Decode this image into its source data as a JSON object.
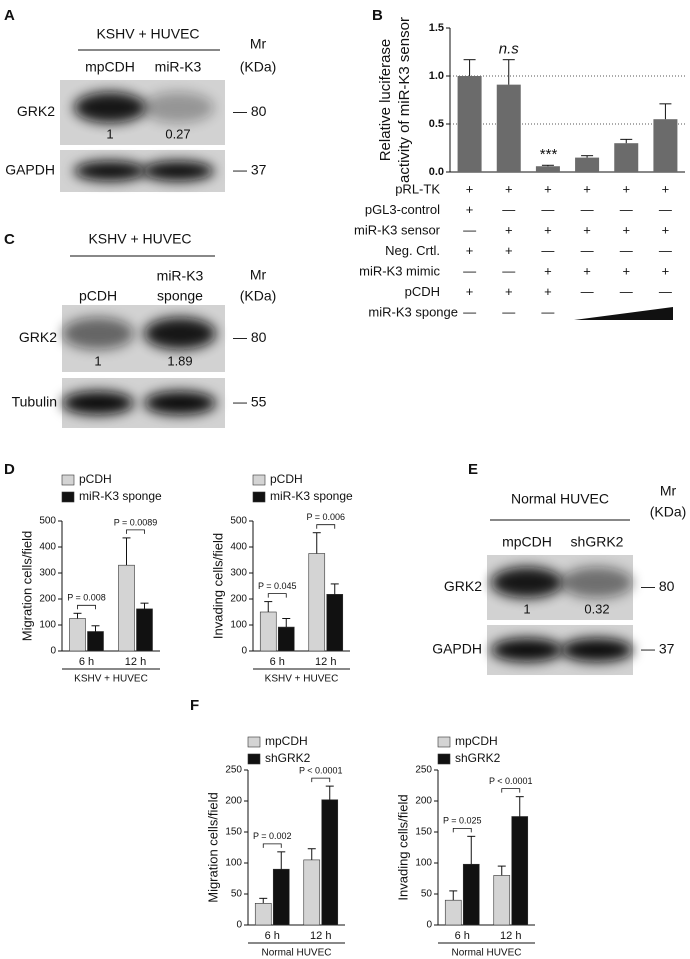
{
  "panel_letters": [
    "A",
    "B",
    "C",
    "D",
    "E",
    "F"
  ],
  "blots": [
    {
      "title": "KSHV + HUVEC",
      "lanes": [
        [
          "mpCDH"
        ],
        [
          "miR-K3"
        ]
      ],
      "mr": [
        "Mr",
        "(KDa)"
      ],
      "rows": [
        {
          "protein": "GRK2",
          "mr": "— 80",
          "quant": [
            "1",
            "0.27"
          ]
        },
        {
          "protein": "GAPDH",
          "mr": "— 37"
        }
      ]
    },
    {
      "title": "KSHV + HUVEC",
      "lanes": [
        [
          "pCDH"
        ],
        [
          "miR-K3",
          "sponge"
        ]
      ],
      "mr": [
        "Mr",
        "(KDa)"
      ],
      "rows": [
        {
          "protein": "GRK2",
          "mr": "— 80",
          "quant": [
            "1",
            "1.89"
          ]
        },
        {
          "protein": "Tubulin",
          "mr": "— 55"
        }
      ]
    },
    {
      "title": "Normal HUVEC",
      "lanes": [
        [
          "mpCDH"
        ],
        [
          "shGRK2"
        ]
      ],
      "mr": [
        "Mr",
        "(KDa)"
      ],
      "rows": [
        {
          "protein": "GRK2",
          "mr": "— 80",
          "quant": [
            "1",
            "0.32"
          ]
        },
        {
          "protein": "GAPDH",
          "mr": "— 37"
        }
      ]
    }
  ],
  "chart_data": [
    {
      "type": "bar",
      "ylabel": [
        "Relative luciferase",
        "activity of miR-K3 sensor"
      ],
      "values": [
        1,
        0.91,
        0.06,
        0.15,
        0.3,
        0.55
      ],
      "errors": [
        0.17,
        0.26,
        0.01,
        0.02,
        0.04,
        0.16
      ],
      "color": "#6b6b6b",
      "bar_labels": [
        null,
        "n.s",
        "***",
        null,
        null,
        null
      ],
      "ylim": [
        0,
        1.5
      ],
      "yticks": [
        {
          "value": 0,
          "label": "0.0"
        },
        {
          "value": 0.5,
          "label": "0.5"
        },
        {
          "value": 1,
          "label": "1.0"
        },
        {
          "value": 1.5,
          "label": "1.5"
        }
      ],
      "reference_lines": [
        0.5,
        1
      ],
      "conditions": [
        {
          "label": "pRL-TK",
          "cells": [
            "+",
            "+",
            "+",
            "+",
            "+",
            "+"
          ]
        },
        {
          "label": "pGL3-control",
          "cells": [
            "+",
            "—",
            "—",
            "—",
            "—",
            "—"
          ]
        },
        {
          "label": "miR-K3 sensor",
          "cells": [
            "—",
            "+",
            "+",
            "+",
            "+",
            "+"
          ]
        },
        {
          "label": "Neg. Crtl.",
          "cells": [
            "+",
            "+",
            "—",
            "—",
            "—",
            "—"
          ]
        },
        {
          "label": "miR-K3 mimic",
          "cells": [
            "—",
            "—",
            "+",
            "+",
            "+",
            "+"
          ]
        },
        {
          "label": "pCDH",
          "cells": [
            "+",
            "+",
            "+",
            "—",
            "—",
            "—"
          ]
        },
        {
          "label": "miR-K3 sponge",
          "cells": [
            "—",
            "—",
            "—",
            null,
            null,
            null
          ]
        }
      ]
    },
    {
      "type": "grouped_bar",
      "categories": [
        "6 h",
        "12 h"
      ],
      "xlabel": "KSHV + HUVEC",
      "ylabel": "Migration cells/field",
      "series": [
        {
          "name": "pCDH",
          "color": "#d4d4d4",
          "values": [
            125,
            330
          ],
          "errors": [
            20,
            105
          ]
        },
        {
          "name": "miR-K3 sponge",
          "color": "#111111",
          "values": [
            75,
            162
          ],
          "errors": [
            22,
            22
          ]
        }
      ],
      "annotations": [
        "P = 0.008",
        "P = 0.0089"
      ],
      "ylim": [
        0,
        500
      ],
      "yticks": [
        0,
        100,
        200,
        300,
        400,
        500
      ]
    },
    {
      "type": "grouped_bar",
      "categories": [
        "6 h",
        "12 h"
      ],
      "xlabel": "KSHV + HUVEC",
      "ylabel": "Invading cells/field",
      "series": [
        {
          "name": "pCDH",
          "color": "#d4d4d4",
          "values": [
            150,
            375
          ],
          "errors": [
            40,
            80
          ]
        },
        {
          "name": "miR-K3 sponge",
          "color": "#111111",
          "values": [
            92,
            218
          ],
          "errors": [
            33,
            40
          ]
        }
      ],
      "annotations": [
        "P = 0.045",
        "P = 0.006"
      ],
      "ylim": [
        0,
        500
      ],
      "yticks": [
        0,
        100,
        200,
        300,
        400,
        500
      ]
    },
    {
      "type": "grouped_bar",
      "categories": [
        "6 h",
        "12 h"
      ],
      "xlabel": "Normal HUVEC",
      "ylabel": "Migration cells/field",
      "series": [
        {
          "name": "mpCDH",
          "color": "#d4d4d4",
          "values": [
            35,
            105
          ],
          "errors": [
            8,
            18
          ]
        },
        {
          "name": "shGRK2",
          "color": "#111111",
          "values": [
            90,
            202
          ],
          "errors": [
            28,
            22
          ]
        }
      ],
      "annotations": [
        "P = 0.002",
        "P < 0.0001"
      ],
      "ylim": [
        0,
        250
      ],
      "yticks": [
        0,
        50,
        100,
        150,
        200,
        250
      ]
    },
    {
      "type": "grouped_bar",
      "categories": [
        "6 h",
        "12 h"
      ],
      "xlabel": "Normal HUVEC",
      "ylabel": "Invading cells/field",
      "series": [
        {
          "name": "mpCDH",
          "color": "#d4d4d4",
          "values": [
            40,
            80
          ],
          "errors": [
            15,
            15
          ]
        },
        {
          "name": "shGRK2",
          "color": "#111111",
          "values": [
            98,
            175
          ],
          "errors": [
            45,
            32
          ]
        }
      ],
      "annotations": [
        "P = 0.025",
        "P < 0.0001"
      ],
      "ylim": [
        0,
        250
      ],
      "yticks": [
        0,
        50,
        100,
        150,
        200,
        250
      ]
    }
  ]
}
